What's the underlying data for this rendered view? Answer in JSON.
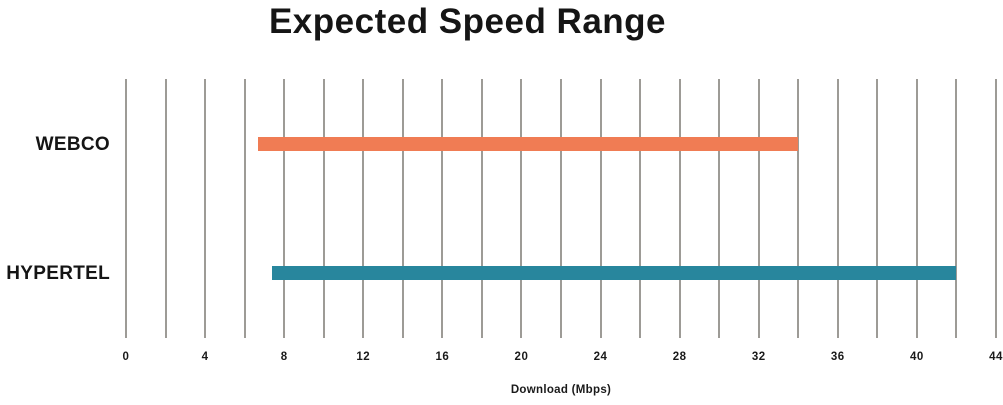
{
  "chart_data": {
    "type": "bar",
    "subtype": "horizontal-range-bar",
    "title": "Expected Speed Range",
    "xlabel": "Download (Mbps)",
    "categories": [
      "WEBCO",
      "HYPERTEL"
    ],
    "series": [
      {
        "name": "WEBCO",
        "min": 6.7,
        "max": 34,
        "color": "#F07C54"
      },
      {
        "name": "HYPERTEL",
        "min": 7.4,
        "max": 42,
        "color": "#28869D"
      }
    ],
    "xlim": [
      0,
      44
    ],
    "xticks": [
      0,
      4,
      8,
      12,
      16,
      20,
      24,
      28,
      32,
      36,
      40,
      44
    ],
    "gridline_step": 2,
    "grid_color": "#9D9B96",
    "grid_on": true,
    "legend": "none",
    "background_color": "#FFFFFF",
    "text_color": "#151515"
  }
}
